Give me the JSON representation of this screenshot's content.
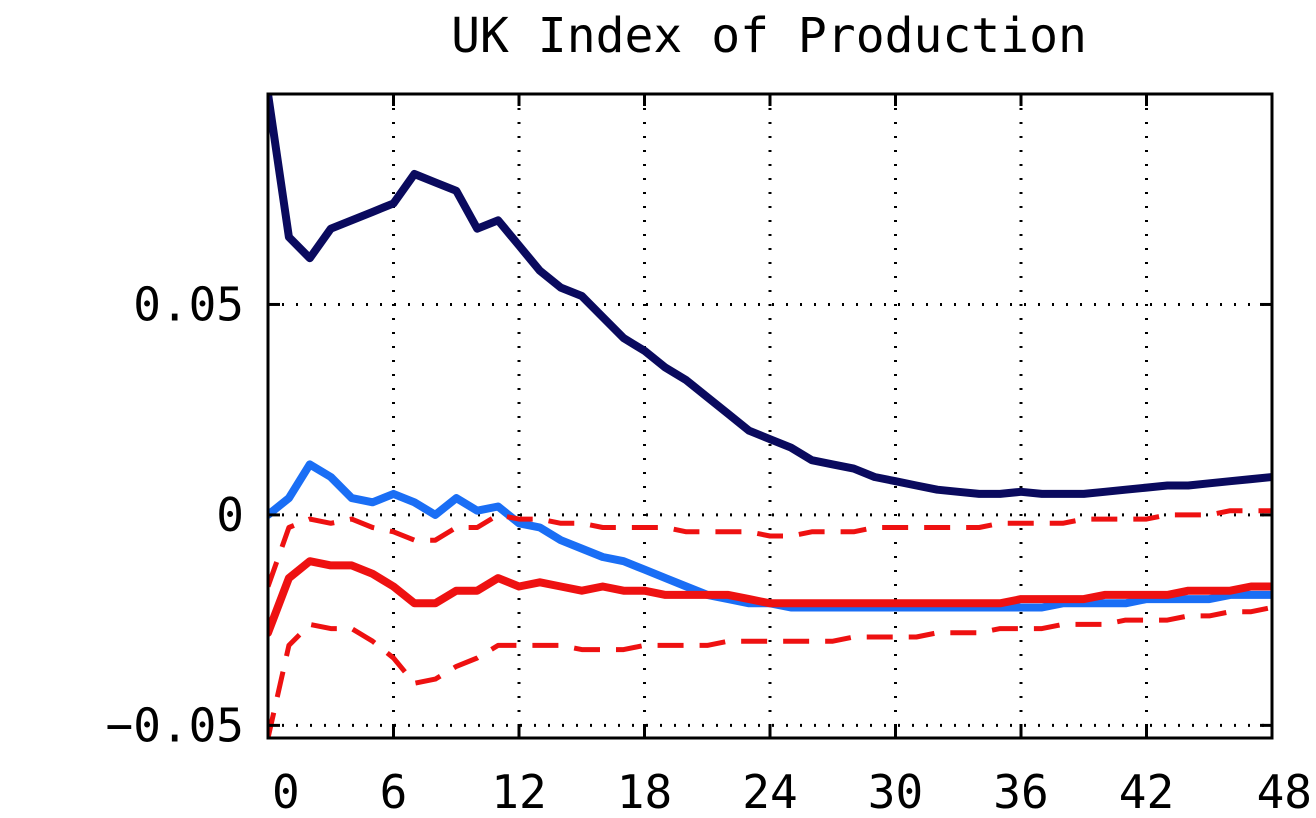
{
  "chart_data": {
    "type": "line",
    "title": "UK Index of Production",
    "xlabel": "",
    "ylabel": "",
    "xlim": [
      0,
      48
    ],
    "ylim": [
      -0.053,
      0.1
    ],
    "x_ticks": [
      0,
      6,
      12,
      18,
      24,
      30,
      36,
      42,
      48
    ],
    "x_tick_labels": [
      "0",
      "6",
      "12",
      "18",
      "24",
      "30",
      "36",
      "42",
      "48"
    ],
    "y_ticks": [
      -0.05,
      0,
      0.05
    ],
    "y_tick_labels": [
      "−0.05",
      "0",
      "0.05"
    ],
    "grid": true,
    "legend": "none",
    "series": [
      {
        "color": "#0a0a5e",
        "style": "solid",
        "width": 8,
        "x": [
          0,
          1,
          2,
          3,
          4,
          5,
          6,
          7,
          8,
          9,
          10,
          11,
          12,
          13,
          14,
          15,
          16,
          17,
          18,
          19,
          20,
          21,
          22,
          23,
          24,
          25,
          26,
          27,
          28,
          29,
          30,
          31,
          32,
          33,
          34,
          35,
          36,
          37,
          38,
          39,
          40,
          41,
          42,
          43,
          44,
          45,
          46,
          47,
          48
        ],
        "values": [
          0.1,
          0.066,
          0.061,
          0.068,
          0.07,
          0.072,
          0.074,
          0.081,
          0.079,
          0.077,
          0.068,
          0.07,
          0.064,
          0.058,
          0.054,
          0.052,
          0.047,
          0.042,
          0.039,
          0.035,
          0.032,
          0.028,
          0.024,
          0.02,
          0.018,
          0.016,
          0.013,
          0.012,
          0.011,
          0.009,
          0.008,
          0.007,
          0.006,
          0.0055,
          0.005,
          0.005,
          0.0055,
          0.005,
          0.005,
          0.005,
          0.0055,
          0.006,
          0.0065,
          0.007,
          0.007,
          0.0075,
          0.008,
          0.0085,
          0.009
        ]
      },
      {
        "color": "#1a6ef5",
        "style": "solid",
        "width": 8,
        "x": [
          0,
          1,
          2,
          3,
          4,
          5,
          6,
          7,
          8,
          9,
          10,
          11,
          12,
          13,
          14,
          15,
          16,
          17,
          18,
          19,
          20,
          21,
          22,
          23,
          24,
          25,
          26,
          27,
          28,
          29,
          30,
          31,
          32,
          33,
          34,
          35,
          36,
          37,
          38,
          39,
          40,
          41,
          42,
          43,
          44,
          45,
          46,
          47,
          48
        ],
        "values": [
          0.0,
          0.004,
          0.012,
          0.009,
          0.004,
          0.003,
          0.005,
          0.003,
          0.0,
          0.004,
          0.001,
          0.002,
          -0.002,
          -0.003,
          -0.006,
          -0.008,
          -0.01,
          -0.011,
          -0.013,
          -0.015,
          -0.017,
          -0.019,
          -0.02,
          -0.021,
          -0.021,
          -0.022,
          -0.022,
          -0.022,
          -0.022,
          -0.022,
          -0.022,
          -0.022,
          -0.022,
          -0.022,
          -0.022,
          -0.022,
          -0.022,
          -0.022,
          -0.021,
          -0.021,
          -0.021,
          -0.021,
          -0.02,
          -0.02,
          -0.02,
          -0.02,
          -0.019,
          -0.019,
          -0.019
        ]
      },
      {
        "color": "#ee1111",
        "style": "solid",
        "width": 8,
        "x": [
          0,
          1,
          2,
          3,
          4,
          5,
          6,
          7,
          8,
          9,
          10,
          11,
          12,
          13,
          14,
          15,
          16,
          17,
          18,
          19,
          20,
          21,
          22,
          23,
          24,
          25,
          26,
          27,
          28,
          29,
          30,
          31,
          32,
          33,
          34,
          35,
          36,
          37,
          38,
          39,
          40,
          41,
          42,
          43,
          44,
          45,
          46,
          47,
          48
        ],
        "values": [
          -0.028,
          -0.015,
          -0.011,
          -0.012,
          -0.012,
          -0.014,
          -0.017,
          -0.021,
          -0.021,
          -0.018,
          -0.018,
          -0.015,
          -0.017,
          -0.016,
          -0.017,
          -0.018,
          -0.017,
          -0.018,
          -0.018,
          -0.019,
          -0.019,
          -0.019,
          -0.019,
          -0.02,
          -0.021,
          -0.021,
          -0.021,
          -0.021,
          -0.021,
          -0.021,
          -0.021,
          -0.021,
          -0.021,
          -0.021,
          -0.021,
          -0.021,
          -0.02,
          -0.02,
          -0.02,
          -0.02,
          -0.019,
          -0.019,
          -0.019,
          -0.019,
          -0.018,
          -0.018,
          -0.018,
          -0.017,
          -0.017
        ]
      },
      {
        "color": "#ee1111",
        "style": "dashed",
        "width": 5,
        "x": [
          0,
          1,
          2,
          3,
          4,
          5,
          6,
          7,
          8,
          9,
          10,
          11,
          12,
          13,
          14,
          15,
          16,
          17,
          18,
          19,
          20,
          21,
          22,
          23,
          24,
          25,
          26,
          27,
          28,
          29,
          30,
          31,
          32,
          33,
          34,
          35,
          36,
          37,
          38,
          39,
          40,
          41,
          42,
          43,
          44,
          45,
          46,
          47,
          48
        ],
        "values": [
          -0.017,
          -0.003,
          -0.001,
          -0.002,
          -0.001,
          -0.003,
          -0.004,
          -0.006,
          -0.006,
          -0.003,
          -0.003,
          0.0,
          -0.001,
          -0.001,
          -0.002,
          -0.002,
          -0.003,
          -0.003,
          -0.003,
          -0.003,
          -0.004,
          -0.004,
          -0.004,
          -0.004,
          -0.005,
          -0.005,
          -0.004,
          -0.004,
          -0.004,
          -0.003,
          -0.003,
          -0.003,
          -0.003,
          -0.003,
          -0.003,
          -0.002,
          -0.002,
          -0.002,
          -0.002,
          -0.001,
          -0.001,
          -0.001,
          -0.001,
          0.0,
          0.0,
          0.0,
          0.001,
          0.001,
          0.001
        ]
      },
      {
        "color": "#ee1111",
        "style": "dashed",
        "width": 5,
        "x": [
          0,
          1,
          2,
          3,
          4,
          5,
          6,
          7,
          8,
          9,
          10,
          11,
          12,
          13,
          14,
          15,
          16,
          17,
          18,
          19,
          20,
          21,
          22,
          23,
          24,
          25,
          26,
          27,
          28,
          29,
          30,
          31,
          32,
          33,
          34,
          35,
          36,
          37,
          38,
          39,
          40,
          41,
          42,
          43,
          44,
          45,
          46,
          47,
          48
        ],
        "values": [
          -0.053,
          -0.031,
          -0.026,
          -0.027,
          -0.027,
          -0.03,
          -0.034,
          -0.04,
          -0.039,
          -0.036,
          -0.034,
          -0.031,
          -0.031,
          -0.031,
          -0.031,
          -0.032,
          -0.032,
          -0.032,
          -0.031,
          -0.031,
          -0.031,
          -0.031,
          -0.03,
          -0.03,
          -0.03,
          -0.03,
          -0.03,
          -0.03,
          -0.029,
          -0.029,
          -0.029,
          -0.029,
          -0.028,
          -0.028,
          -0.028,
          -0.027,
          -0.027,
          -0.027,
          -0.026,
          -0.026,
          -0.026,
          -0.025,
          -0.025,
          -0.025,
          -0.024,
          -0.024,
          -0.023,
          -0.023,
          -0.022
        ]
      }
    ]
  }
}
